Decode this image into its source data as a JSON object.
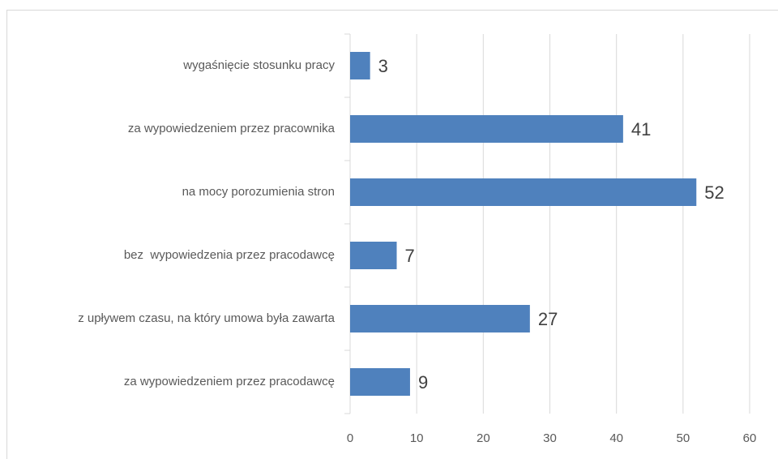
{
  "chart_data": {
    "type": "bar",
    "orientation": "horizontal",
    "categories": [
      "wygaśnięcie stosunku pracy",
      "za wypowiedzeniem przez pracownika",
      "na mocy porozumienia stron",
      "bez  wypowiedzenia przez pracodawcę",
      "z upływem czasu, na który umowa była zawarta",
      "za wypowiedzeniem przez pracodawcę"
    ],
    "values": [
      3,
      41,
      52,
      7,
      27,
      9
    ],
    "color": "#4f81bd",
    "xlim": [
      0,
      60
    ],
    "xticks": [
      0,
      10,
      20,
      30,
      40,
      50,
      60
    ],
    "grid": true
  }
}
